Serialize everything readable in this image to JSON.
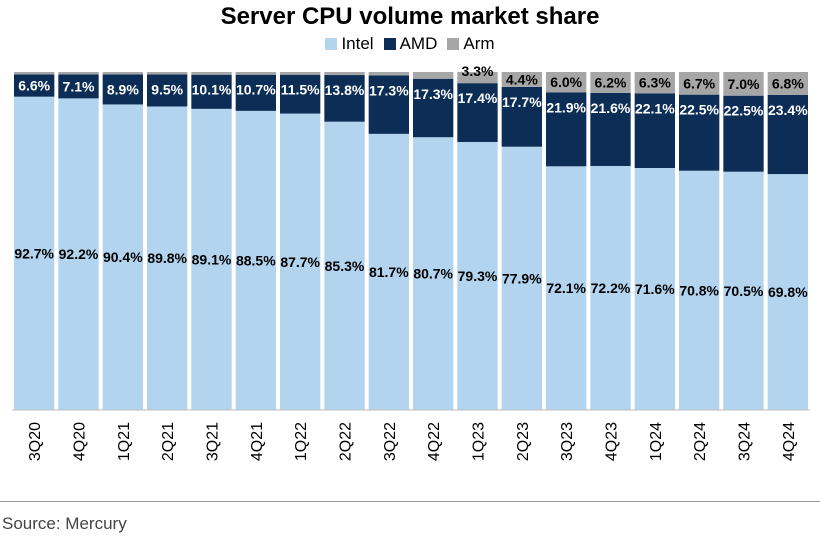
{
  "chart_data": {
    "type": "bar",
    "stacked": true,
    "title": "Server CPU volume market share",
    "categories": [
      "3Q20",
      "4Q20",
      "1Q21",
      "2Q21",
      "3Q21",
      "4Q21",
      "1Q22",
      "2Q22",
      "3Q22",
      "4Q22",
      "1Q23",
      "2Q23",
      "3Q23",
      "4Q23",
      "1Q24",
      "2Q24",
      "3Q24",
      "4Q24"
    ],
    "series": [
      {
        "name": "Intel",
        "color": "#b3d4ef",
        "values": [
          92.7,
          92.2,
          90.4,
          89.8,
          89.1,
          88.5,
          87.7,
          85.3,
          81.7,
          80.7,
          79.3,
          77.9,
          72.1,
          72.2,
          71.6,
          70.8,
          70.5,
          69.8
        ],
        "labels": [
          "92.7%",
          "92.2%",
          "90.4%",
          "89.8%",
          "89.1%",
          "88.5%",
          "87.7%",
          "85.3%",
          "81.7%",
          "80.7%",
          "79.3%",
          "77.9%",
          "72.1%",
          "72.2%",
          "71.6%",
          "70.8%",
          "70.5%",
          "69.8%"
        ]
      },
      {
        "name": "AMD",
        "color": "#0c2d55",
        "values": [
          6.6,
          7.1,
          8.9,
          9.5,
          10.1,
          10.7,
          11.5,
          13.8,
          17.3,
          17.3,
          17.4,
          17.7,
          21.9,
          21.6,
          22.1,
          22.5,
          22.5,
          23.4
        ],
        "labels": [
          "6.6%",
          "7.1%",
          "8.9%",
          "9.5%",
          "10.1%",
          "10.7%",
          "11.5%",
          "13.8%",
          "17.3%",
          "17.3%",
          "17.4%",
          "17.7%",
          "21.9%",
          "21.6%",
          "22.1%",
          "22.5%",
          "22.5%",
          "23.4%"
        ]
      },
      {
        "name": "Arm",
        "color": "#a6a6a6",
        "values": [
          0.7,
          0.7,
          0.7,
          0.7,
          0.8,
          0.8,
          0.8,
          0.9,
          1.0,
          2.0,
          3.3,
          4.4,
          6.0,
          6.2,
          6.3,
          6.7,
          7.0,
          6.8
        ],
        "labels": [
          "",
          "",
          "",
          "",
          "",
          "",
          "",
          "",
          "",
          "",
          "3.3%",
          "4.4%",
          "6.0%",
          "6.2%",
          "6.3%",
          "6.7%",
          "7.0%",
          "6.8%"
        ]
      }
    ],
    "ylim": [
      0,
      100
    ],
    "grid": false,
    "legend_position": "top-center"
  },
  "source": "Source: Mercury"
}
